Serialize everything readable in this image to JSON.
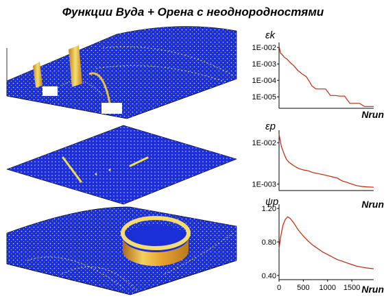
{
  "page": {
    "title": "Функции Вуда + Орена с неоднородностями"
  },
  "surfaces": [
    {
      "name": "surface-top"
    },
    {
      "name": "surface-middle"
    },
    {
      "name": "surface-bottom"
    }
  ],
  "chart_data": [
    {
      "type": "line",
      "ylabel": "εk",
      "xlabel": "Nrun",
      "yscale": "log",
      "ylim": [
        2e-06,
        0.02
      ],
      "xlim": [
        0,
        1950
      ],
      "ytick_labels": [
        "1E-002",
        "1E-003",
        "1E-004",
        "1E-005"
      ],
      "ytick_values": [
        0.01,
        0.001,
        0.0001,
        1e-05
      ],
      "line_color": "#cc2200",
      "series": [
        {
          "x": [
            0,
            30,
            70,
            110,
            160,
            230,
            300,
            380,
            470,
            560,
            620,
            680,
            760,
            850,
            960,
            1060,
            1150,
            1250,
            1350,
            1460,
            1560,
            1660,
            1760,
            1860,
            1950
          ],
          "y": [
            0.012,
            0.0045,
            0.0035,
            0.0025,
            0.002,
            0.0012,
            0.0008,
            0.00042,
            0.00025,
            0.00017,
            9e-05,
            4.5e-05,
            3e-05,
            3e-05,
            3e-05,
            1.2e-05,
            1.2e-05,
            1.1e-05,
            1.1e-05,
            4e-06,
            4e-06,
            4e-06,
            2.6e-06,
            2.6e-06,
            2.6e-06
          ]
        }
      ]
    },
    {
      "type": "line",
      "ylabel": "εp",
      "xlabel": "Nrun",
      "yscale": "log",
      "ylim": [
        0.0007,
        0.02
      ],
      "xlim": [
        0,
        1950
      ],
      "ytick_labels": [
        "1E-002",
        "1E-003"
      ],
      "ytick_values": [
        0.01,
        0.001
      ],
      "line_color": "#cc2200",
      "series": [
        {
          "x": [
            0,
            20,
            50,
            100,
            150,
            200,
            300,
            400,
            500,
            600,
            700,
            800,
            900,
            1000,
            1100,
            1200,
            1300,
            1400,
            1500,
            1600,
            1700,
            1800,
            1950
          ],
          "y": [
            0.016,
            0.012,
            0.008,
            0.0055,
            0.004,
            0.0034,
            0.0028,
            0.0024,
            0.0022,
            0.0021,
            0.0019,
            0.0018,
            0.0017,
            0.0016,
            0.0015,
            0.0014,
            0.0012,
            0.0011,
            0.001,
            0.00092,
            0.00088,
            0.00086,
            0.00084
          ]
        }
      ]
    },
    {
      "type": "line",
      "ylabel": "ψp",
      "xlabel": "Nrun",
      "ylim": [
        0.35,
        1.25
      ],
      "xlim": [
        0,
        1950
      ],
      "ytick_labels": [
        "1.20",
        "0.80",
        "0.40"
      ],
      "ytick_values": [
        1.2,
        0.8,
        0.4
      ],
      "xtick_labels": [
        "0",
        "500",
        "1000",
        "1500"
      ],
      "xtick_values": [
        0,
        500,
        1000,
        1500
      ],
      "line_color": "#cc2200",
      "series": [
        {
          "x": [
            0,
            30,
            80,
            130,
            180,
            230,
            300,
            400,
            500,
            600,
            700,
            800,
            900,
            1000,
            1100,
            1200,
            1300,
            1400,
            1500,
            1600,
            1700,
            1800,
            1950
          ],
          "y": [
            0.72,
            0.85,
            1.0,
            1.07,
            1.1,
            1.08,
            1.03,
            0.94,
            0.87,
            0.81,
            0.76,
            0.72,
            0.68,
            0.65,
            0.62,
            0.59,
            0.57,
            0.55,
            0.53,
            0.51,
            0.5,
            0.49,
            0.48
          ]
        }
      ]
    }
  ]
}
